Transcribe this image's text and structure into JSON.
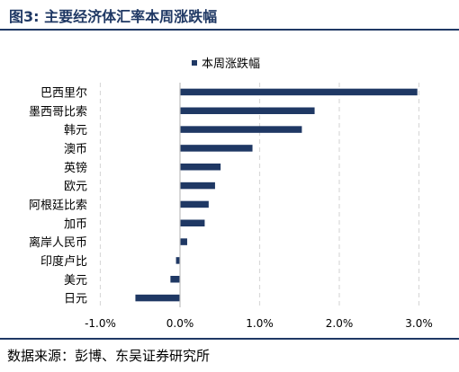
{
  "header": {
    "title": "图3:  主要经济体汇率本周涨跌幅"
  },
  "footer": {
    "source": "数据来源：彭博、东吴证券研究所"
  },
  "colors": {
    "bar": "#1f3864",
    "grid": "#d9d9d9",
    "axis": "#bfbfbf",
    "text": "#000000"
  },
  "chart_data": {
    "type": "bar",
    "orientation": "horizontal",
    "categories": [
      "巴西里尔",
      "墨西哥比索",
      "韩元",
      "澳币",
      "英镑",
      "欧元",
      "阿根廷比索",
      "加币",
      "离岸人民币",
      "印度卢比",
      "美元",
      "日元"
    ],
    "series": [
      {
        "name": "本周涨跌幅",
        "values": [
          2.98,
          1.69,
          1.53,
          0.91,
          0.51,
          0.44,
          0.36,
          0.31,
          0.09,
          -0.05,
          -0.12,
          -0.56
        ]
      }
    ],
    "x_ticks": [
      "-1.0%",
      "0.0%",
      "1.0%",
      "2.0%",
      "3.0%"
    ],
    "x_tick_values": [
      -1,
      0,
      1,
      2,
      3
    ],
    "xlim": [
      -1,
      3
    ],
    "grid": "vertical-dashed",
    "legend": "top-center"
  }
}
